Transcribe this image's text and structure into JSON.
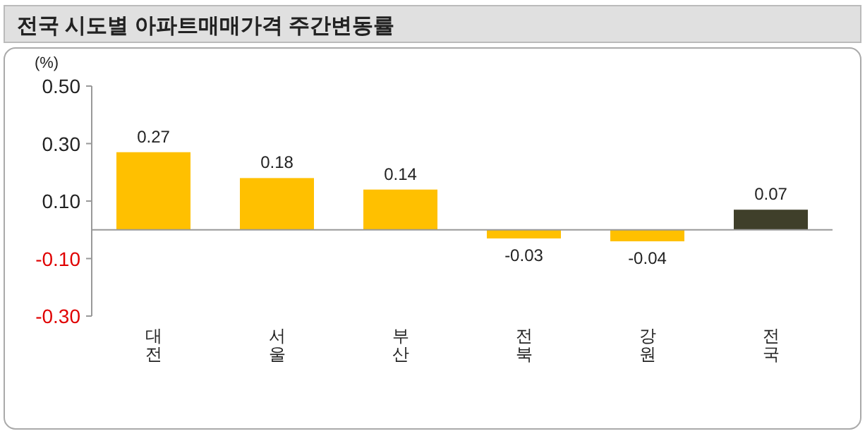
{
  "chart_data": {
    "type": "bar",
    "title": "전국 시도별 아파트매매가격 주간변동률",
    "ylabel": "(%)",
    "categories": [
      "대전",
      "서울",
      "부산",
      "전북",
      "강원",
      "전국"
    ],
    "values": [
      0.27,
      0.18,
      0.14,
      -0.03,
      -0.04,
      0.07
    ],
    "colors": [
      "#ffc000",
      "#ffc000",
      "#ffc000",
      "#ffc000",
      "#ffc000",
      "#3f3f2a"
    ],
    "ylim": [
      -0.3,
      0.5
    ],
    "yticks": [
      {
        "value": 0.5,
        "label": "0.50"
      },
      {
        "value": 0.3,
        "label": "0.30"
      },
      {
        "value": 0.1,
        "label": "0.10"
      },
      {
        "value": -0.1,
        "label": "-0.10"
      },
      {
        "value": -0.3,
        "label": "-0.30"
      }
    ],
    "data_labels": true,
    "grid": false
  }
}
